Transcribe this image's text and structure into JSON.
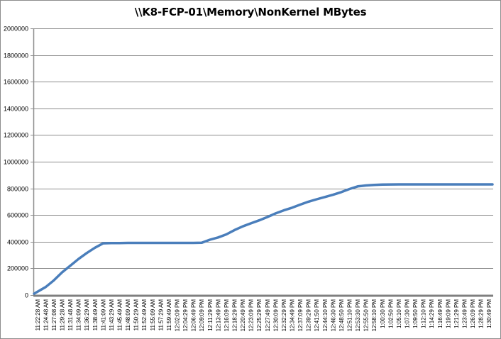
{
  "chart_data": {
    "type": "line",
    "title": "\\\\K8-FCP-01\\Memory\\NonKernel MBytes",
    "xlabel": "",
    "ylabel": "",
    "ylim": [
      0,
      2000000
    ],
    "yticks": [
      0,
      200000,
      400000,
      600000,
      800000,
      1000000,
      1200000,
      1400000,
      1600000,
      1800000,
      2000000
    ],
    "grid": true,
    "legend": "none",
    "series_color": "#4a7ebb",
    "categories": [
      "11:22:28 AM",
      "11:24:48 AM",
      "11:27:08 AM",
      "11:29:28 AM",
      "11:31:48 AM",
      "11:34:09 AM",
      "11:36:29 AM",
      "11:38:49 AM",
      "11:41:09 AM",
      "11:43:29 AM",
      "11:45:49 AM",
      "11:48:09 AM",
      "11:50:29 AM",
      "11:52:49 AM",
      "11:55:09 AM",
      "11:57:29 AM",
      "11:59:49 AM",
      "12:02:09 PM",
      "12:04:29 PM",
      "12:06:49 PM",
      "12:09:09 PM",
      "12:11:29 PM",
      "12:13:49 PM",
      "12:16:09 PM",
      "12:18:29 PM",
      "12:20:49 PM",
      "12:23:09 PM",
      "12:25:29 PM",
      "12:27:49 PM",
      "12:30:09 PM",
      "12:32:29 PM",
      "12:34:49 PM",
      "12:37:09 PM",
      "12:39:29 PM",
      "12:41:50 PM",
      "12:44:10 PM",
      "12:46:30 PM",
      "12:48:50 PM",
      "12:51:10 PM",
      "12:53:30 PM",
      "12:55:50 PM",
      "12:58:10 PM",
      "1:00:30 PM",
      "1:02:50 PM",
      "1:05:10 PM",
      "1:07:30 PM",
      "1:09:50 PM",
      "1:12:10 PM",
      "1:14:29 PM",
      "1:16:49 PM",
      "1:19:09 PM",
      "1:21:29 PM",
      "1:23:49 PM",
      "1:26:09 PM",
      "1:28:29 PM",
      "1:30:49 PM"
    ],
    "values": [
      10000,
      60000,
      110000,
      170000,
      220000,
      270000,
      315000,
      355000,
      388000,
      390000,
      390000,
      391000,
      391000,
      391000,
      391000,
      391000,
      391000,
      391000,
      391000,
      391000,
      392000,
      415000,
      432000,
      455000,
      487000,
      515000,
      538000,
      560000,
      585000,
      612000,
      635000,
      655000,
      678000,
      700000,
      718000,
      735000,
      752000,
      772000,
      795000,
      815000,
      822000,
      826000,
      828000,
      829000,
      830000,
      830000,
      830000,
      830000,
      830000,
      830000,
      830000,
      830000,
      830000,
      830000,
      830000,
      830000
    ]
  }
}
